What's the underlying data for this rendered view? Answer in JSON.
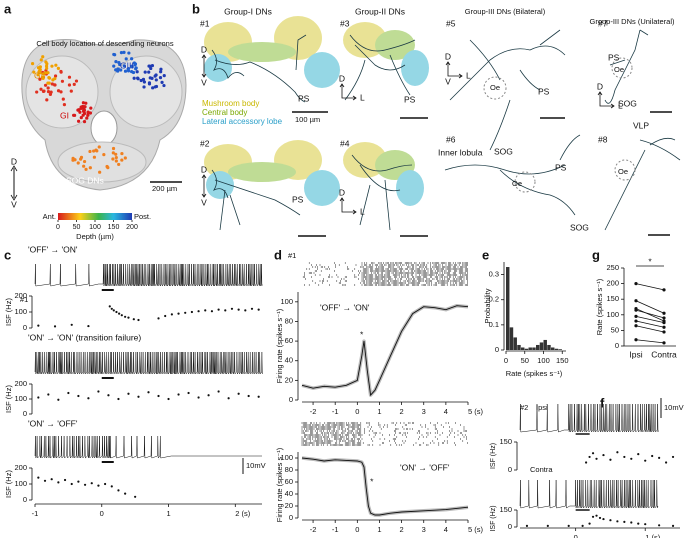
{
  "panel_a": {
    "letter": "a",
    "title": "Cell body location of descending neurons",
    "groups": [
      "GIII",
      "GII",
      "GI",
      "SOG DNs"
    ],
    "scale_bar": "200 µm",
    "axis": [
      "D",
      "V"
    ],
    "colorbar": {
      "ends": [
        "Ant.",
        "Post."
      ],
      "ticks": [
        0,
        50,
        100,
        150,
        200
      ],
      "lim": [
        0,
        200
      ],
      "label": "Depth (µm)"
    }
  },
  "panel_b": {
    "letter": "b",
    "groups": [
      "Group-I DNs",
      "Group-II DNs",
      "Group-III DNs (Bilateral)",
      "Group-III DNs (Unilateral)"
    ],
    "neurons": [
      "#1",
      "#3",
      "#5",
      "#7",
      "#2",
      "#4",
      "#6",
      "#8"
    ],
    "legend": [
      {
        "name": "Mushroom body",
        "color": "#c9b800"
      },
      {
        "name": "Central body",
        "color": "#7aa800"
      },
      {
        "name": "Lateral accessory lobe",
        "color": "#2a9fc9"
      }
    ],
    "scale_bar": "100 µm",
    "labels": {
      "ps": "PS",
      "d": "D",
      "v": "V",
      "l": "L",
      "oe": "Oe",
      "sog": "SOG",
      "inner_lobula": "Inner lobula",
      "vlp": "VLP"
    }
  },
  "panel_c": {
    "letter": "c",
    "neuron": "#1",
    "isf_label": "ISF (Hz)",
    "scale": "10mV",
    "xlim": [
      -1,
      2.4
    ],
    "xticks": [
      -1,
      0,
      1,
      {
        "value": 2,
        "label": "2 (s)"
      }
    ],
    "rows": [
      {
        "title": "'OFF' → 'ON'",
        "ylim": [
          0,
          200
        ],
        "yticks": [
          0,
          100,
          200
        ],
        "x": [
          -0.95,
          -0.7,
          -0.45,
          -0.2,
          0.12,
          0.15,
          0.18,
          0.22,
          0.26,
          0.3,
          0.35,
          0.4,
          0.48,
          0.55,
          0.85,
          0.95,
          1.05,
          1.15,
          1.25,
          1.35,
          1.45,
          1.55,
          1.65,
          1.75,
          1.85,
          1.95,
          2.05,
          2.15,
          2.25,
          2.35
        ],
        "y": [
          15,
          10,
          20,
          12,
          135,
          120,
          110,
          100,
          90,
          80,
          70,
          65,
          55,
          50,
          60,
          75,
          85,
          90,
          95,
          100,
          105,
          110,
          105,
          115,
          110,
          120,
          115,
          110,
          120,
          115
        ]
      },
      {
        "title": "'ON' → 'ON' (transition failure)",
        "ylim": [
          0,
          200
        ],
        "yticks": [
          0,
          100,
          200
        ],
        "x": [
          -0.95,
          -0.8,
          -0.65,
          -0.5,
          -0.35,
          -0.2,
          -0.05,
          0.1,
          0.25,
          0.4,
          0.55,
          0.7,
          0.85,
          1.0,
          1.15,
          1.3,
          1.45,
          1.6,
          1.75,
          1.9,
          2.05,
          2.2,
          2.35
        ],
        "y": [
          110,
          130,
          95,
          140,
          120,
          105,
          150,
          125,
          100,
          135,
          115,
          145,
          120,
          100,
          130,
          140,
          110,
          125,
          150,
          105,
          135,
          120,
          115
        ]
      },
      {
        "title": "'ON' → 'OFF'",
        "ylim": [
          0,
          200
        ],
        "yticks": [
          0,
          100,
          200
        ],
        "x": [
          -0.95,
          -0.85,
          -0.75,
          -0.65,
          -0.55,
          -0.45,
          -0.35,
          -0.25,
          -0.15,
          -0.05,
          0.05,
          0.15,
          0.25,
          0.35,
          0.5
        ],
        "y": [
          140,
          120,
          130,
          110,
          125,
          100,
          115,
          95,
          105,
          90,
          100,
          85,
          60,
          40,
          20
        ]
      }
    ]
  },
  "panel_d": {
    "letter": "d",
    "neuron": "#1",
    "ylabel": "Firing rate (spikes s⁻¹)",
    "star": "*",
    "xlim": [
      -2.5,
      5
    ],
    "xticks": [
      -2,
      -1,
      0,
      1,
      2,
      3,
      4,
      {
        "value": 5,
        "label": "5 (s)"
      }
    ],
    "ylim": [
      0,
      110
    ],
    "yticks": [
      0,
      20,
      40,
      60,
      80,
      100
    ],
    "plots": [
      {
        "title": "'OFF' → 'ON'",
        "x": [
          -2.5,
          -2,
          -1.5,
          -1,
          -0.5,
          0,
          0.2,
          0.3,
          0.45,
          0.6,
          0.8,
          1,
          1.5,
          2,
          2.5,
          3,
          3.5,
          4,
          4.5,
          5
        ],
        "values": [
          15,
          12,
          14,
          13,
          15,
          20,
          45,
          60,
          30,
          5,
          10,
          20,
          45,
          70,
          88,
          95,
          94,
          92,
          96,
          95
        ]
      },
      {
        "title": "'ON' → 'OFF'",
        "x": [
          -2.5,
          -2,
          -1.5,
          -1,
          -0.5,
          0,
          0.2,
          0.3,
          0.4,
          0.5,
          0.6,
          0.8,
          1,
          1.5,
          2,
          3,
          4,
          5
        ],
        "values": [
          100,
          98,
          95,
          97,
          96,
          95,
          93,
          85,
          50,
          20,
          8,
          5,
          5,
          8,
          10,
          12,
          14,
          18
        ]
      }
    ]
  },
  "panel_e": {
    "letter": "e",
    "ylabel": "Probability",
    "xlabel": "Rate (spikes s⁻¹)",
    "bins": [
      0,
      10,
      20,
      30,
      40,
      50,
      60,
      70,
      80,
      90,
      100,
      110,
      120,
      130,
      140,
      150,
      160
    ],
    "values": [
      0.33,
      0.09,
      0.05,
      0.02,
      0.01,
      0.005,
      0.01,
      0.01,
      0.02,
      0.03,
      0.04,
      0.02,
      0.01,
      0.005,
      0.003,
      0
    ],
    "xlim": [
      0,
      160
    ],
    "xticks": [
      0,
      50,
      100,
      150
    ],
    "ylim": [
      0,
      0.35
    ],
    "yticks": [
      0,
      0.1,
      0.2,
      0.3
    ]
  },
  "panel_f": {
    "letter": "f",
    "neuron": "#2",
    "isf_label": "ISF (Hz)",
    "scale": "10mV",
    "xlim": [
      -0.8,
      1.5
    ],
    "xticks": [
      0,
      {
        "value": 1,
        "label": "1 (s)"
      }
    ],
    "rows": [
      {
        "title": "Ipsi",
        "ylim": [
          0,
          150
        ],
        "yticks": [
          0,
          150
        ],
        "x": [
          0.15,
          0.2,
          0.25,
          0.3,
          0.4,
          0.5,
          0.6,
          0.7,
          0.8,
          0.9,
          1.0,
          1.1,
          1.2,
          1.3,
          1.4
        ],
        "y": [
          40,
          70,
          90,
          60,
          80,
          55,
          95,
          70,
          60,
          85,
          50,
          75,
          65,
          40,
          70
        ]
      },
      {
        "title": "Contra",
        "ylim": [
          0,
          150
        ],
        "yticks": [
          0,
          150
        ],
        "x": [
          -0.7,
          -0.4,
          -0.1,
          0.1,
          0.2,
          0.25,
          0.3,
          0.35,
          0.4,
          0.5,
          0.6,
          0.7,
          0.8,
          0.9,
          1.0,
          1.2,
          1.4
        ],
        "y": [
          10,
          10,
          10,
          10,
          30,
          90,
          100,
          80,
          70,
          60,
          50,
          45,
          40,
          30,
          25,
          15,
          10
        ]
      }
    ]
  },
  "panel_g": {
    "letter": "g",
    "ylabel": "Rate (spikes s⁻¹)",
    "star": "*",
    "categories": [
      "Ipsi",
      "Contra"
    ],
    "ipsi": [
      200,
      145,
      120,
      115,
      95,
      80,
      65,
      20
    ],
    "contra": [
      180,
      105,
      80,
      90,
      75,
      60,
      45,
      10
    ],
    "ylim": [
      0,
      250
    ],
    "yticks": [
      0,
      50,
      100,
      150,
      200,
      250
    ]
  }
}
